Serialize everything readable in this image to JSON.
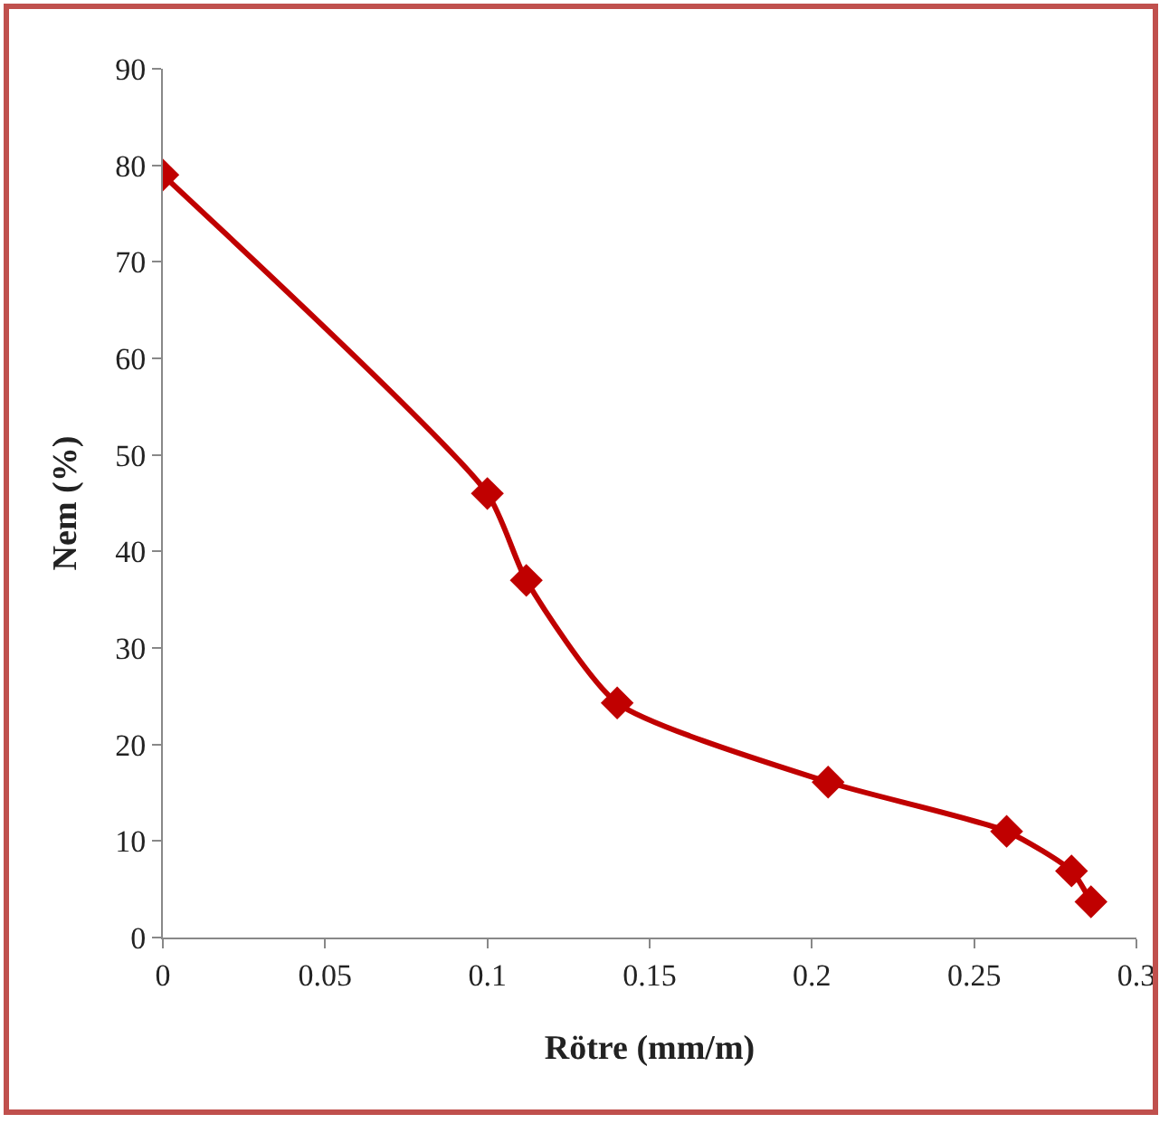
{
  "chart_data": {
    "type": "line",
    "xlabel": "Rötre (mm/m)",
    "ylabel": "Nem (%)",
    "x": [
      0,
      0.1,
      0.112,
      0.14,
      0.205,
      0.26,
      0.28,
      0.286
    ],
    "series": [
      {
        "color": "#c00000",
        "values": [
          79,
          46,
          37,
          24.3,
          16.1,
          11,
          6.9,
          3.7
        ]
      }
    ],
    "xlim": [
      0,
      0.3
    ],
    "xticks": [
      0,
      0.05,
      0.1,
      0.15,
      0.2,
      0.25,
      0.3
    ],
    "ylim": [
      0,
      90
    ],
    "yticks": [
      0,
      10,
      20,
      30,
      40,
      50,
      60,
      70,
      80,
      90
    ],
    "grid": false,
    "legend": false,
    "marker": "diamond",
    "line_style": "solid"
  }
}
